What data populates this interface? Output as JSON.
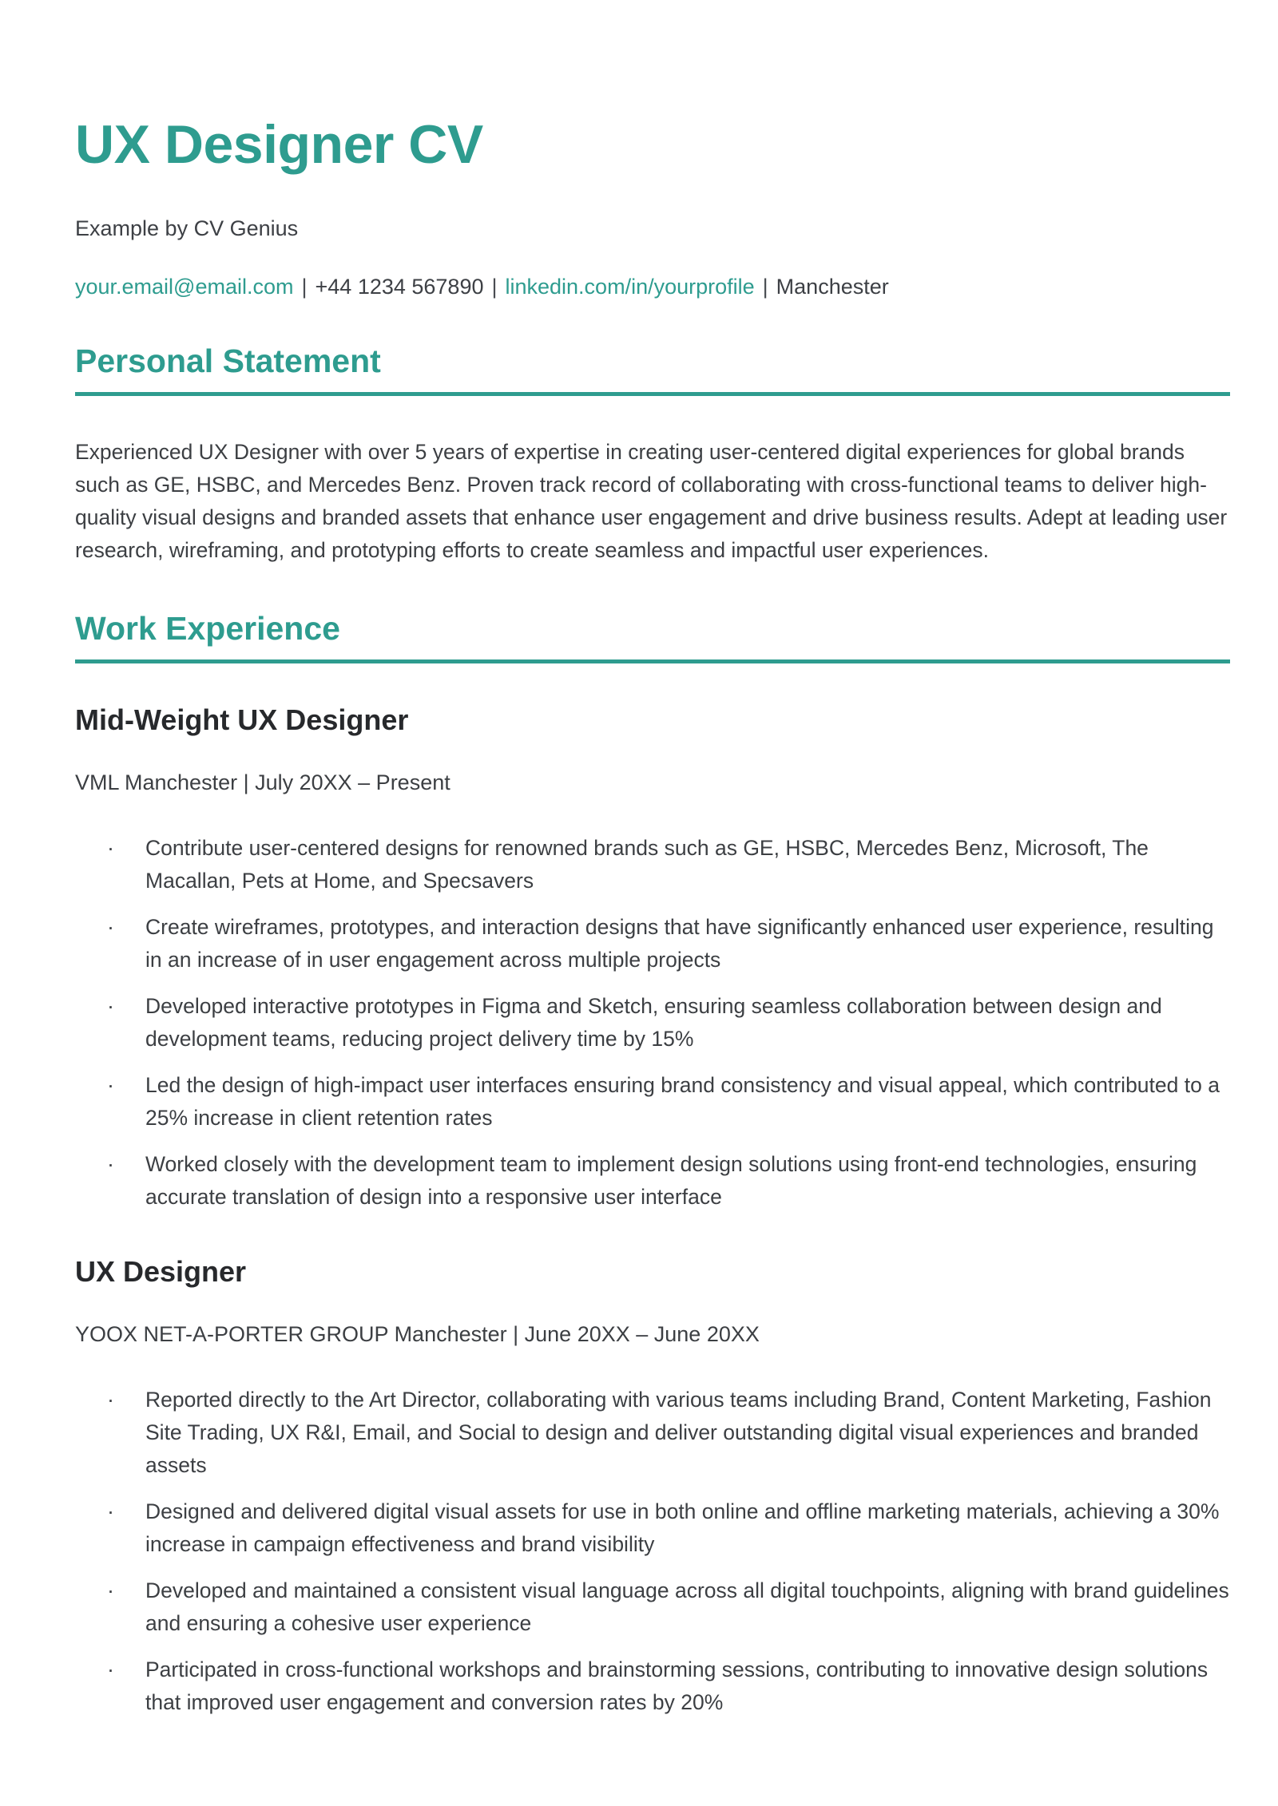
{
  "colors": {
    "accent": "#2E9C8F",
    "body_text": "#3c3f43",
    "job_title_text": "#27292c"
  },
  "list_marker": "·",
  "header": {
    "title": "UX Designer CV",
    "subtitle": "Example by CV Genius",
    "contact": {
      "email": "your.email@email.com",
      "phone": "+44 1234 567890",
      "linkedin": "linkedin.com/in/yourprofile",
      "location": "Manchester",
      "separator": "|"
    }
  },
  "personal_statement": {
    "heading": "Personal Statement",
    "body": "Experienced UX Designer with over 5 years of expertise in creating user-centered digital experiences for global brands such as GE, HSBC, and Mercedes Benz. Proven track record of collaborating with cross-functional teams to deliver high-quality visual designs and branded assets that enhance user engagement and drive business results. Adept at leading user research, wireframing, and prototyping efforts to create seamless and impactful user experiences."
  },
  "work_experience": {
    "heading": "Work Experience",
    "jobs": [
      {
        "title": "Mid-Weight UX Designer",
        "meta": "VML Manchester | July 20XX – Present",
        "bullets": [
          "Contribute user-centered designs for renowned brands such as GE, HSBC, Mercedes Benz, Microsoft, The Macallan, Pets at Home, and Specsavers",
          "Create wireframes, prototypes, and interaction designs that have significantly enhanced user experience, resulting in an increase of in user engagement across multiple projects",
          "Developed interactive prototypes in Figma and Sketch, ensuring seamless collaboration between design and development teams, reducing project delivery time by 15%",
          "Led the design of high-impact user interfaces ensuring brand consistency and visual appeal, which contributed to a 25% increase in client retention rates",
          "Worked closely with the development team to implement design solutions using front-end technologies, ensuring accurate translation of design into a responsive user interface"
        ]
      },
      {
        "title": "UX Designer",
        "meta": "YOOX NET-A-PORTER GROUP Manchester | June 20XX – June 20XX",
        "bullets": [
          "Reported directly to the Art Director, collaborating with various teams including Brand, Content Marketing, Fashion Site Trading, UX R&I, Email, and Social to design and deliver outstanding digital visual experiences and branded assets",
          "Designed and delivered digital visual assets for use in both online and offline marketing materials, achieving a 30% increase in campaign effectiveness and brand visibility",
          "Developed and maintained a consistent visual language across all digital touchpoints, aligning with brand guidelines and ensuring a cohesive user experience",
          "Participated in cross-functional workshops and brainstorming sessions, contributing to innovative design solutions that improved user engagement and conversion rates by 20%"
        ]
      }
    ]
  }
}
